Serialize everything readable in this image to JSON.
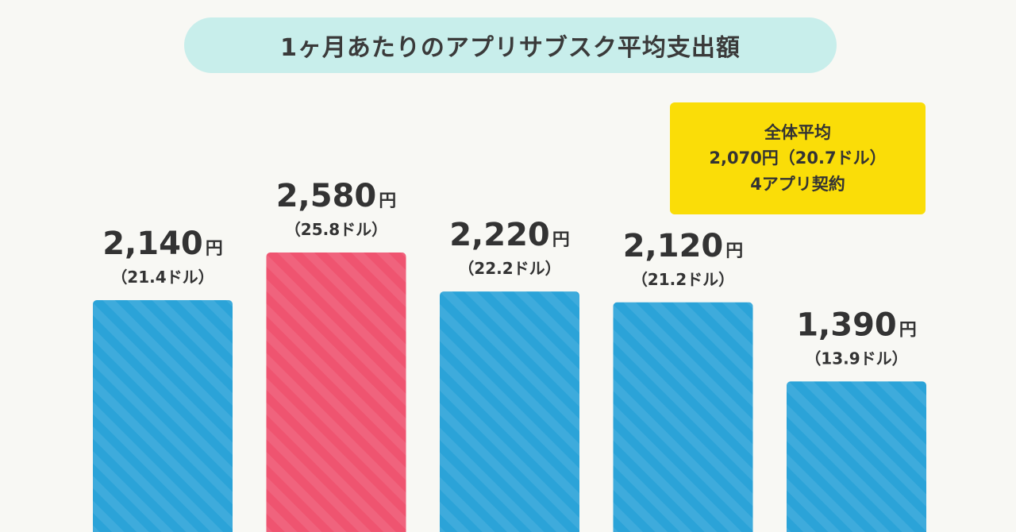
{
  "title": "1ヶ月あたりのアプリサブスク平均支出額",
  "average_box": {
    "line1": "全体平均",
    "line2": "2,070円（20.7ドル）",
    "line3": "4アプリ契約"
  },
  "colors": {
    "background": "#f8f8f4",
    "title_pill": "#c8eeeb",
    "average_box": "#fadd08",
    "bar_default": "#2ba3d8",
    "bar_highlight": "#ef5470"
  },
  "chart_data": {
    "type": "bar",
    "title": "1ヶ月あたりのアプリサブスク平均支出額",
    "unit": "円",
    "values": [
      2140,
      2580,
      2220,
      2120,
      1390
    ],
    "value_labels": [
      "2,140",
      "2,580",
      "2,220",
      "2,120",
      "1,390"
    ],
    "sub_labels": [
      "（21.4ドル）",
      "（25.8ドル）",
      "（22.2ドル）",
      "（21.2ドル）",
      "（13.9ドル）"
    ],
    "highlight_index": 1,
    "average": 2070,
    "grid": false
  }
}
